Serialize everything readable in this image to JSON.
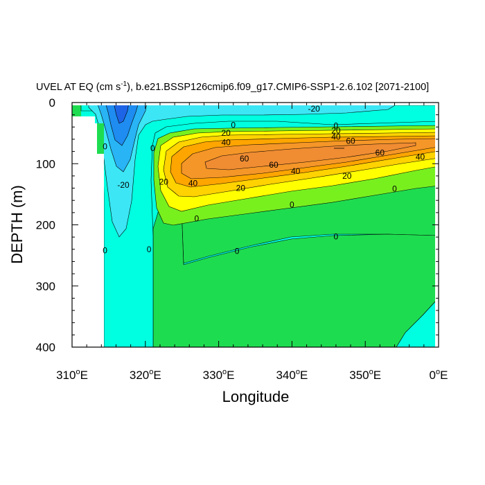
{
  "chart_data": {
    "type": "contour",
    "title_prefix": "UVEL AT EQ (cm s",
    "title_exp": "-1",
    "title_suffix": "), b.e21.BSSP126cmip6.f09_g17.CMIP6-SSP1-2.6.102 [2071-2100]",
    "xlabel": "Longitude",
    "ylabel": "DEPTH (m)",
    "x_range": [
      310,
      360
    ],
    "y_range": [
      0,
      400
    ],
    "y_inverted": true,
    "x_ticks": [
      {
        "value": 310,
        "num": "310",
        "deg": "o",
        "dir": "E"
      },
      {
        "value": 320,
        "num": "320",
        "deg": "o",
        "dir": "E"
      },
      {
        "value": 330,
        "num": "330",
        "deg": "o",
        "dir": "E"
      },
      {
        "value": 340,
        "num": "340",
        "deg": "o",
        "dir": "E"
      },
      {
        "value": 350,
        "num": "350",
        "deg": "o",
        "dir": "E"
      },
      {
        "value": 360,
        "num": "0",
        "deg": "o",
        "dir": "E"
      }
    ],
    "y_ticks": [
      {
        "value": 0,
        "label": "0"
      },
      {
        "value": 100,
        "label": "100"
      },
      {
        "value": 200,
        "label": "200"
      },
      {
        "value": 300,
        "label": "300"
      },
      {
        "value": 400,
        "label": "400"
      }
    ],
    "contour_levels": [
      -40,
      -30,
      -20,
      -10,
      0,
      10,
      20,
      30,
      40,
      50,
      60
    ],
    "fill_colors": {
      "lt_-40": "#1e64e6",
      "-40_-30": "#1e8cf0",
      "-30_-20": "#28b4f5",
      "-20_-10": "#3ce6f5",
      "-10_0": "#00ffe0",
      "0_10": "#1edc50",
      "10_20": "#78f01e",
      "20_30": "#ffff00",
      "30_40": "#ffd200",
      "40_50": "#ffa500",
      "50_60": "#f59628",
      "gt_60": "#f08c32",
      "missing": "#ffffff"
    },
    "contour_labels": [
      {
        "text": "-20",
        "lon": 343.0,
        "depth": 10
      },
      {
        "text": "0",
        "lon": 332.0,
        "depth": 37
      },
      {
        "text": "20",
        "lon": 331.0,
        "depth": 50
      },
      {
        "text": "40",
        "lon": 331.0,
        "depth": 65
      },
      {
        "text": "60",
        "lon": 333.5,
        "depth": 92
      },
      {
        "text": "60",
        "lon": 337.5,
        "depth": 102
      },
      {
        "text": "40",
        "lon": 340.5,
        "depth": 112
      },
      {
        "text": "20",
        "lon": 333.0,
        "depth": 140
      },
      {
        "text": "40",
        "lon": 326.5,
        "depth": 132
      },
      {
        "text": "20",
        "lon": 322.5,
        "depth": 130
      },
      {
        "text": "0",
        "lon": 346.0,
        "depth": 38
      },
      {
        "text": "20",
        "lon": 346.0,
        "depth": 46
      },
      {
        "text": "40",
        "lon": 346.0,
        "depth": 56
      },
      {
        "text": "60",
        "lon": 348.0,
        "depth": 63
      },
      {
        "text": "60",
        "lon": 352.0,
        "depth": 82
      },
      {
        "text": "40",
        "lon": 357.5,
        "depth": 89
      },
      {
        "text": "20",
        "lon": 347.5,
        "depth": 120
      },
      {
        "text": "0",
        "lon": 354.0,
        "depth": 141
      },
      {
        "text": "0",
        "lon": 340.0,
        "depth": 167
      },
      {
        "text": "0",
        "lon": 346.0,
        "depth": 219
      },
      {
        "text": "0",
        "lon": 332.5,
        "depth": 243
      },
      {
        "text": "0",
        "lon": 327.0,
        "depth": 190
      },
      {
        "text": "0",
        "lon": 321.0,
        "depth": 75
      },
      {
        "text": "0",
        "lon": 314.5,
        "depth": 72
      },
      {
        "text": "-20",
        "lon": 317.0,
        "depth": 135
      },
      {
        "text": "0",
        "lon": 314.5,
        "depth": 242
      },
      {
        "text": "0",
        "lon": 320.5,
        "depth": 240
      }
    ]
  }
}
